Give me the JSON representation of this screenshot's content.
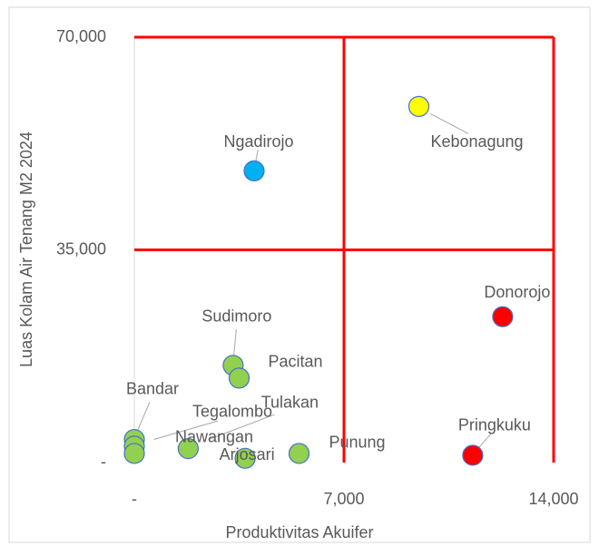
{
  "chart_data": {
    "type": "scatter",
    "x_label": "Produktivitas Akuifer",
    "y_label": "Luas Kolam Air Tenang M2 2024",
    "labels": [
      "Kebonagung",
      "Ngadirojo",
      "Donorojo",
      "Pringkuku",
      "Sudimoro",
      "Pacitan",
      "Bandar",
      "Tegalombo",
      "Nawangan",
      "Tulakan",
      "Arjosari",
      "Punung"
    ],
    "x": [
      9500,
      4000,
      12300,
      11300,
      3300,
      3500,
      0,
      0,
      0,
      1800,
      3700,
      5500
    ],
    "y": [
      58600,
      48000,
      24000,
      1200,
      16000,
      13900,
      3800,
      2700,
      1500,
      2300,
      700,
      1500
    ],
    "colors": [
      "#ffff00",
      "#00b0f0",
      "#ff0000",
      "#ff0000",
      "#92d050",
      "#92d050",
      "#92d050",
      "#92d050",
      "#92d050",
      "#92d050",
      "#92d050",
      "#92d050"
    ],
    "marker_edge_color": "#4472c4",
    "xlim": [
      0,
      14000
    ],
    "ylim": [
      0,
      70000
    ],
    "xticks": [
      {
        "value": 0,
        "label": "-"
      },
      {
        "value": 7000,
        "label": "7,000"
      },
      {
        "value": 14000,
        "label": "14,000"
      }
    ],
    "yticks": [
      {
        "value": 0,
        "label": "-"
      },
      {
        "value": 35000,
        "label": "35,000"
      },
      {
        "value": 70000,
        "label": "70,000"
      }
    ],
    "dividers": {
      "x": [
        7000,
        14000
      ],
      "y": [
        35000,
        70000
      ],
      "color": "#ff0000"
    }
  }
}
